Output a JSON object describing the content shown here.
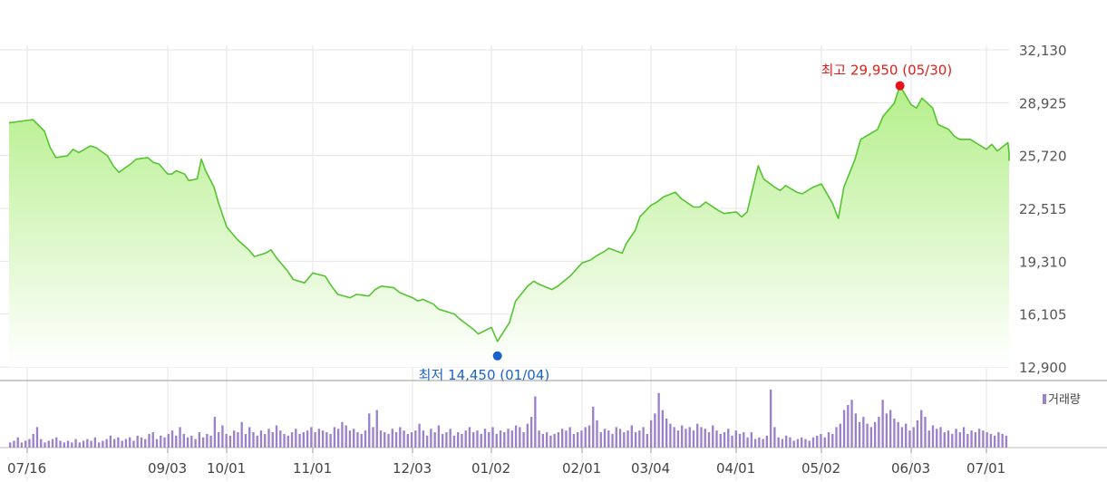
{
  "chart_data": {
    "type": "area",
    "title": "",
    "colors": {
      "price_line": "#55c431",
      "price_fill_top": "#b4ef8a",
      "price_fill_bottom": "#ffffff",
      "grid": "#e6e6e6",
      "volume_bar": "#9b80cc",
      "high_marker": "#e8111a",
      "low_marker": "#1a62c8",
      "axis_line": "#999999"
    },
    "price_axis": {
      "ylim": [
        12900,
        32130
      ],
      "ticks": [
        "32,130",
        "28,925",
        "25,720",
        "22,515",
        "19,310",
        "16,105",
        "12,900"
      ]
    },
    "x_ticks": [
      "07/16",
      "09/03",
      "10/01",
      "11/01",
      "12/03",
      "01/02",
      "02/01",
      "03/04",
      "04/01",
      "05/02",
      "06/03",
      "07/01"
    ],
    "grid": true,
    "annotations": {
      "high": {
        "label": "최고 29,950 (05/30)",
        "value": 29950,
        "date": "05/30"
      },
      "low": {
        "label": "최저 14,450 (01/04)",
        "value": 14450,
        "date": "01/04"
      }
    },
    "price_series": {
      "name": "",
      "points": [
        [
          "07/16",
          27700
        ],
        [
          "07/18",
          27900
        ],
        [
          "07/22",
          27200
        ],
        [
          "07/24",
          26200
        ],
        [
          "07/26",
          25600
        ],
        [
          "07/30",
          25700
        ],
        [
          "08/01",
          26100
        ],
        [
          "08/03",
          25900
        ],
        [
          "08/07",
          26300
        ],
        [
          "08/09",
          26200
        ],
        [
          "08/13",
          25700
        ],
        [
          "08/15",
          25100
        ],
        [
          "08/17",
          24700
        ],
        [
          "08/21",
          25200
        ],
        [
          "08/23",
          25500
        ],
        [
          "08/27",
          25600
        ],
        [
          "08/29",
          25300
        ],
        [
          "08/31",
          25200
        ],
        [
          "09/03",
          24600
        ],
        [
          "09/05",
          24600
        ],
        [
          "09/07",
          24800
        ],
        [
          "09/11",
          24600
        ],
        [
          "09/13",
          24200
        ],
        [
          "09/17",
          24300
        ],
        [
          "09/19",
          25500
        ],
        [
          "09/21",
          24800
        ],
        [
          "09/25",
          23800
        ],
        [
          "09/27",
          22900
        ],
        [
          "10/01",
          21400
        ],
        [
          "10/03",
          21000
        ],
        [
          "10/05",
          20600
        ],
        [
          "10/09",
          20000
        ],
        [
          "10/11",
          19600
        ],
        [
          "10/15",
          19800
        ],
        [
          "10/17",
          20000
        ],
        [
          "10/19",
          19500
        ],
        [
          "10/23",
          18700
        ],
        [
          "10/25",
          18200
        ],
        [
          "10/29",
          18000
        ],
        [
          "11/01",
          18600
        ],
        [
          "11/05",
          18400
        ],
        [
          "11/07",
          17800
        ],
        [
          "11/09",
          17300
        ],
        [
          "11/13",
          17100
        ],
        [
          "11/15",
          17300
        ],
        [
          "11/19",
          17200
        ],
        [
          "11/21",
          17600
        ],
        [
          "11/23",
          17800
        ],
        [
          "11/27",
          17700
        ],
        [
          "11/29",
          17400
        ],
        [
          "12/03",
          17100
        ],
        [
          "12/05",
          16900
        ],
        [
          "12/07",
          17000
        ],
        [
          "12/11",
          16700
        ],
        [
          "12/13",
          16400
        ],
        [
          "12/17",
          16200
        ],
        [
          "12/19",
          16100
        ],
        [
          "12/21",
          15800
        ],
        [
          "12/26",
          15200
        ],
        [
          "12/28",
          14900
        ],
        [
          "01/02",
          15300
        ],
        [
          "01/04",
          14450
        ],
        [
          "01/08",
          15600
        ],
        [
          "01/10",
          16900
        ],
        [
          "01/14",
          17800
        ],
        [
          "01/16",
          18100
        ],
        [
          "01/18",
          17900
        ],
        [
          "01/22",
          17600
        ],
        [
          "01/24",
          17800
        ],
        [
          "01/28",
          18400
        ],
        [
          "01/30",
          18800
        ],
        [
          "02/01",
          19200
        ],
        [
          "02/05",
          19400
        ],
        [
          "02/07",
          19600
        ],
        [
          "02/11",
          19900
        ],
        [
          "02/13",
          20100
        ],
        [
          "02/15",
          20000
        ],
        [
          "02/19",
          19800
        ],
        [
          "02/21",
          20400
        ],
        [
          "02/25",
          21200
        ],
        [
          "02/27",
          22000
        ],
        [
          "03/04",
          22700
        ],
        [
          "03/06",
          22900
        ],
        [
          "03/08",
          23200
        ],
        [
          "03/12",
          23500
        ],
        [
          "03/14",
          23100
        ],
        [
          "03/18",
          22600
        ],
        [
          "03/20",
          22600
        ],
        [
          "03/22",
          22900
        ],
        [
          "03/26",
          22400
        ],
        [
          "03/28",
          22200
        ],
        [
          "04/01",
          22300
        ],
        [
          "04/03",
          22000
        ],
        [
          "04/05",
          22300
        ],
        [
          "04/09",
          25100
        ],
        [
          "04/11",
          24300
        ],
        [
          "04/15",
          23800
        ],
        [
          "04/17",
          23600
        ],
        [
          "04/19",
          23900
        ],
        [
          "04/23",
          23500
        ],
        [
          "04/25",
          23400
        ],
        [
          "04/29",
          23800
        ],
        [
          "05/02",
          24000
        ],
        [
          "05/06",
          22800
        ],
        [
          "05/08",
          21900
        ],
        [
          "05/10",
          23800
        ],
        [
          "05/14",
          25500
        ],
        [
          "05/16",
          26700
        ],
        [
          "05/20",
          27100
        ],
        [
          "05/22",
          27300
        ],
        [
          "05/24",
          28100
        ],
        [
          "05/28",
          28900
        ],
        [
          "05/30",
          29950
        ],
        [
          "06/03",
          28800
        ],
        [
          "06/05",
          28600
        ],
        [
          "06/07",
          29200
        ],
        [
          "06/11",
          28600
        ],
        [
          "06/13",
          27600
        ],
        [
          "06/17",
          27300
        ],
        [
          "06/19",
          26900
        ],
        [
          "06/21",
          26700
        ],
        [
          "06/25",
          26700
        ],
        [
          "06/27",
          26500
        ],
        [
          "07/01",
          26100
        ],
        [
          "07/03",
          26400
        ],
        [
          "07/05",
          26000
        ],
        [
          "07/09",
          26500
        ],
        [
          "07/11",
          25900
        ],
        [
          "07/15",
          25400
        ]
      ]
    },
    "volume_legend": "거래량",
    "volume_series": {
      "name": "거래량",
      "values": [
        3,
        4,
        6,
        3,
        4,
        5,
        8,
        12,
        5,
        3,
        4,
        5,
        6,
        4,
        3,
        4,
        3,
        5,
        3,
        4,
        5,
        4,
        6,
        3,
        4,
        5,
        7,
        5,
        6,
        4,
        5,
        6,
        4,
        7,
        6,
        5,
        8,
        9,
        5,
        7,
        6,
        8,
        10,
        7,
        12,
        8,
        6,
        7,
        5,
        9,
        6,
        8,
        7,
        18,
        9,
        13,
        8,
        7,
        10,
        9,
        15,
        8,
        12,
        9,
        7,
        10,
        8,
        11,
        9,
        13,
        10,
        8,
        7,
        9,
        11,
        8,
        9,
        10,
        12,
        9,
        11,
        10,
        9,
        8,
        12,
        11,
        15,
        13,
        10,
        11,
        9,
        8,
        10,
        20,
        12,
        22,
        10,
        9,
        8,
        11,
        9,
        12,
        10,
        8,
        9,
        10,
        14,
        10,
        7,
        11,
        9,
        13,
        8,
        9,
        11,
        7,
        9,
        8,
        10,
        12,
        9,
        10,
        8,
        11,
        9,
        12,
        8,
        10,
        9,
        11,
        10,
        13,
        12,
        9,
        14,
        18,
        30,
        10,
        8,
        9,
        7,
        8,
        9,
        11,
        10,
        12,
        8,
        9,
        10,
        12,
        13,
        24,
        16,
        9,
        11,
        10,
        8,
        12,
        11,
        9,
        10,
        13,
        9,
        10,
        12,
        8,
        16,
        20,
        32,
        22,
        17,
        14,
        12,
        10,
        13,
        11,
        12,
        10,
        14,
        12,
        11,
        9,
        13,
        10,
        8,
        9,
        11,
        7,
        10,
        8,
        9,
        6,
        9,
        5,
        6,
        5,
        7,
        34,
        12,
        6,
        5,
        7,
        6,
        4,
        5,
        6,
        5,
        4,
        6,
        7,
        8,
        6,
        9,
        8,
        12,
        14,
        22,
        25,
        28,
        20,
        15,
        18,
        14,
        12,
        15,
        18,
        28,
        20,
        22,
        17,
        15,
        12,
        14,
        10,
        12,
        16,
        22,
        18,
        10,
        13,
        11,
        12,
        9,
        10,
        8,
        11,
        9,
        12,
        8,
        10,
        9,
        11,
        10,
        9,
        8,
        7,
        9,
        8,
        7
      ]
    }
  }
}
